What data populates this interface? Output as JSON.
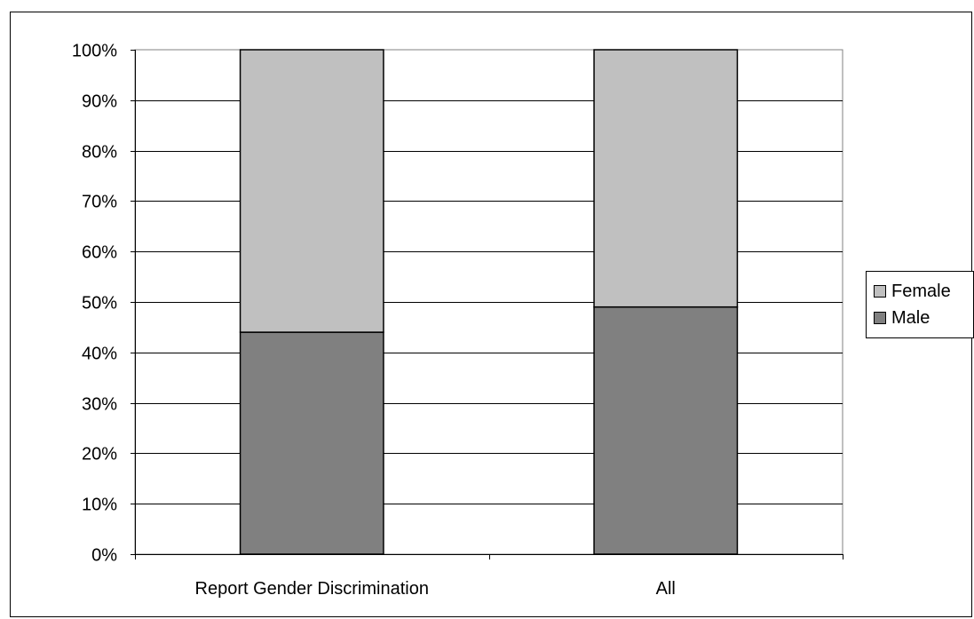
{
  "chart_data": {
    "type": "bar",
    "stacked": true,
    "categories": [
      "Report Gender Discrimination",
      "All"
    ],
    "series": [
      {
        "name": "Male",
        "values": [
          44,
          49
        ],
        "color": "#808080"
      },
      {
        "name": "Female",
        "values": [
          56,
          51
        ],
        "color": "#c0c0c0"
      }
    ],
    "ylim": [
      0,
      100
    ],
    "y_ticks": [
      "0%",
      "10%",
      "20%",
      "30%",
      "40%",
      "50%",
      "60%",
      "70%",
      "80%",
      "90%",
      "100%"
    ],
    "title": "",
    "xlabel": "",
    "ylabel": "",
    "grid": true,
    "legend": {
      "position": "right",
      "order": [
        "Female",
        "Male"
      ]
    }
  }
}
